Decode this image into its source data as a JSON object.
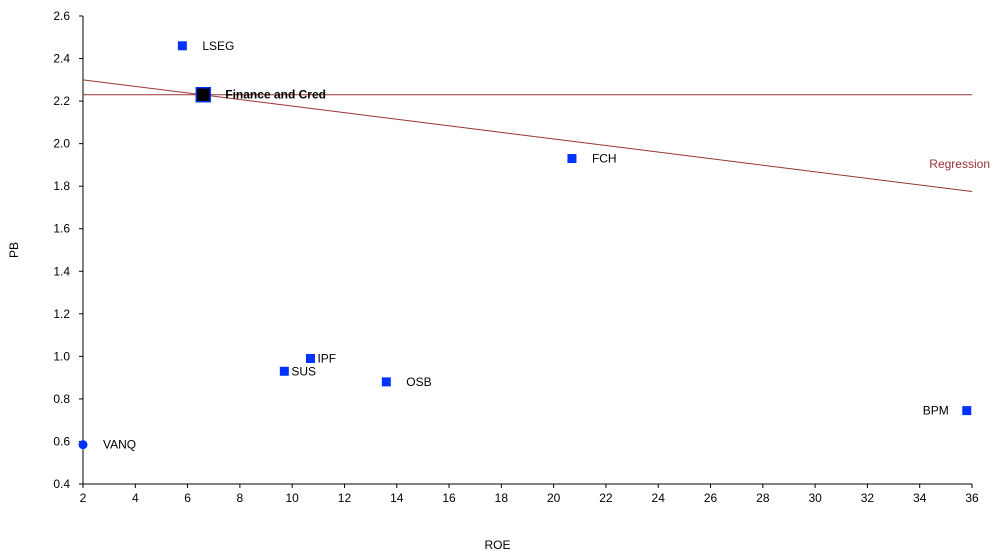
{
  "chart_data": {
    "type": "scatter",
    "title": "",
    "xlabel": "ROE",
    "ylabel": "PB",
    "xlim": [
      2,
      36
    ],
    "ylim": [
      0.4,
      2.6
    ],
    "x_ticks": [
      "2",
      "4",
      "6",
      "8",
      "10",
      "12",
      "14",
      "16",
      "18",
      "20",
      "22",
      "24",
      "26",
      "28",
      "30",
      "32",
      "34",
      "36"
    ],
    "y_ticks": [
      "0.4",
      "0.6",
      "0.8",
      "1.0",
      "1.2",
      "1.4",
      "1.6",
      "1.8",
      "2.0",
      "2.2",
      "2.4",
      "2.6"
    ],
    "grid": false,
    "points": [
      {
        "label": "LSEG",
        "x": 5.8,
        "y": 2.46,
        "marker": "square",
        "label_side": "right"
      },
      {
        "label": "Finance and Cred",
        "x": 6.6,
        "y": 2.23,
        "marker": "square-large",
        "highlight": true,
        "label_side": "right"
      },
      {
        "label": "FCH",
        "x": 20.7,
        "y": 1.93,
        "marker": "square",
        "label_side": "right"
      },
      {
        "label": "IPF",
        "x": 10.7,
        "y": 0.99,
        "marker": "square",
        "label_side": "right-tight"
      },
      {
        "label": "SUS",
        "x": 9.7,
        "y": 0.93,
        "marker": "square",
        "label_side": "right-tight"
      },
      {
        "label": "OSB",
        "x": 13.6,
        "y": 0.88,
        "marker": "square",
        "label_side": "right"
      },
      {
        "label": "BPM",
        "x": 35.8,
        "y": 0.745,
        "marker": "square",
        "label_side": "left"
      },
      {
        "label": "VANQ",
        "x": 2.0,
        "y": 0.585,
        "marker": "circle",
        "label_side": "right"
      }
    ],
    "reference_line": {
      "y": 2.23
    },
    "regression": {
      "label": "Regression",
      "x_start": 2,
      "y_start": 2.3,
      "x_end": 36,
      "y_end": 1.775
    },
    "colors": {
      "marker": "#0033ff",
      "highlight_marker": "#000000",
      "line": "#993333",
      "regression_label": "#993333",
      "axis": "#000000"
    }
  }
}
